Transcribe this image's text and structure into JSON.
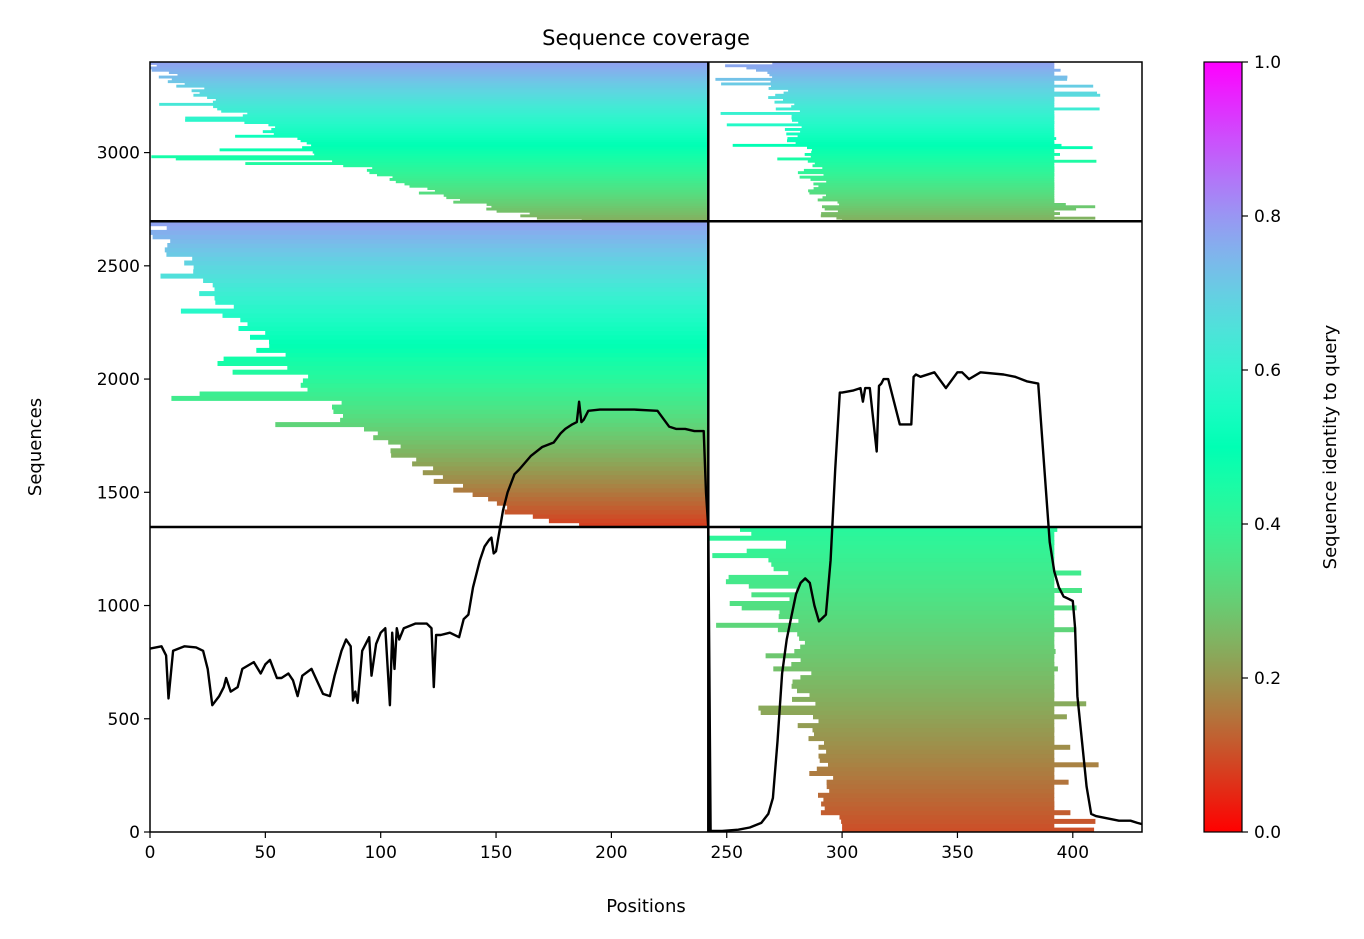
{
  "chart_data": {
    "type": "heatmap",
    "title": "Sequence coverage",
    "xlabel": "Positions",
    "ylabel": "Sequences",
    "xlim": [
      0,
      430
    ],
    "ylim": [
      0,
      3400
    ],
    "x_ticks": [
      0,
      50,
      100,
      150,
      200,
      250,
      300,
      350,
      400
    ],
    "y_ticks": [
      0,
      500,
      1000,
      1500,
      2000,
      2500,
      3000
    ],
    "colorbar": {
      "label": "Sequence identity to query",
      "range": [
        0.0,
        1.0
      ],
      "ticks": [
        "0.0",
        "0.2",
        "0.4",
        "0.6",
        "0.8",
        "1.0"
      ],
      "colormap": "rainbow_r"
    },
    "separators": {
      "vertical_x": 242,
      "horizontal_y": [
        1347,
        2697
      ]
    },
    "blocks": [
      {
        "x0": 0,
        "x1": 242,
        "y0": 1347,
        "y1": 2697,
        "full_from": 186,
        "min_start": 0,
        "id_bottom": 0.08,
        "id_top": 0.78
      },
      {
        "x0": 242,
        "x1": 430,
        "y0": 2697,
        "y1": 3400,
        "full_from": 300,
        "full_to": 392,
        "min_start": 272,
        "id_bottom": 0.24,
        "id_top": 0.78
      },
      {
        "x0": 0,
        "x1": 242,
        "y0": 2697,
        "y1": 3400,
        "full_from": 188,
        "min_start": 0,
        "id_bottom": 0.24,
        "id_top": 0.78
      },
      {
        "x0": 242,
        "x1": 430,
        "y0": 0,
        "y1": 1347,
        "full_from": 300,
        "full_to": 392,
        "min_start": 272,
        "id_bottom": 0.1,
        "id_top": 0.42
      }
    ],
    "series": [
      {
        "type": "line",
        "color": "#000000",
        "x": [
          0,
          5,
          7,
          8,
          10,
          15,
          20,
          23,
          25,
          27,
          30,
          32,
          33,
          35,
          38,
          40,
          45,
          48,
          50,
          52,
          55,
          57,
          60,
          62,
          64,
          66,
          70,
          75,
          78,
          80,
          83,
          85,
          87,
          88,
          89,
          90,
          92,
          95,
          96,
          98,
          100,
          102,
          104,
          105,
          106,
          107,
          108,
          110,
          115,
          120,
          122,
          123,
          124,
          126,
          130,
          134,
          136,
          138,
          140,
          143,
          145,
          147,
          148,
          149,
          150,
          153,
          155,
          158,
          160,
          165,
          170,
          175,
          178,
          180,
          183,
          185,
          186,
          187,
          188,
          190,
          195,
          200,
          210,
          220,
          225,
          228,
          232,
          236,
          240,
          241,
          242,
          243,
          248,
          255,
          260,
          265,
          268,
          270,
          272,
          274,
          276,
          278,
          280,
          282,
          284,
          286,
          288,
          290,
          293,
          295,
          297,
          299,
          300,
          305,
          308,
          309,
          310,
          312,
          315,
          316,
          317,
          318,
          320,
          325,
          330,
          331,
          332,
          334,
          340,
          345,
          350,
          351,
          352,
          355,
          360,
          370,
          375,
          380,
          385,
          390,
          392,
          394,
          396,
          398,
          400,
          401,
          402,
          404,
          406,
          408,
          410,
          420,
          425,
          428,
          430
        ],
        "y": [
          810,
          820,
          780,
          590,
          800,
          820,
          815,
          800,
          720,
          560,
          600,
          640,
          680,
          620,
          640,
          720,
          750,
          700,
          740,
          760,
          680,
          680,
          700,
          670,
          600,
          690,
          720,
          610,
          600,
          690,
          800,
          850,
          820,
          580,
          620,
          570,
          800,
          860,
          690,
          830,
          880,
          900,
          560,
          880,
          720,
          900,
          850,
          900,
          920,
          920,
          900,
          640,
          870,
          870,
          880,
          860,
          940,
          960,
          1080,
          1200,
          1260,
          1290,
          1300,
          1230,
          1240,
          1420,
          1500,
          1580,
          1600,
          1660,
          1700,
          1720,
          1760,
          1780,
          1800,
          1810,
          1900,
          1810,
          1820,
          1860,
          1865,
          1865,
          1865,
          1860,
          1790,
          1780,
          1780,
          1770,
          1770,
          1500,
          1340,
          5,
          5,
          10,
          20,
          40,
          80,
          150,
          400,
          700,
          850,
          950,
          1050,
          1100,
          1120,
          1100,
          1000,
          930,
          960,
          1200,
          1600,
          1940,
          1940,
          1950,
          1960,
          1900,
          1960,
          1960,
          1680,
          1970,
          1980,
          2000,
          2000,
          1800,
          1800,
          2010,
          2020,
          2010,
          2030,
          1960,
          2030,
          2030,
          2030,
          2000,
          2030,
          2020,
          2010,
          1990,
          1980,
          1280,
          1150,
          1080,
          1040,
          1030,
          1020,
          900,
          600,
          400,
          200,
          80,
          70,
          50,
          50,
          40,
          35
        ]
      }
    ]
  }
}
